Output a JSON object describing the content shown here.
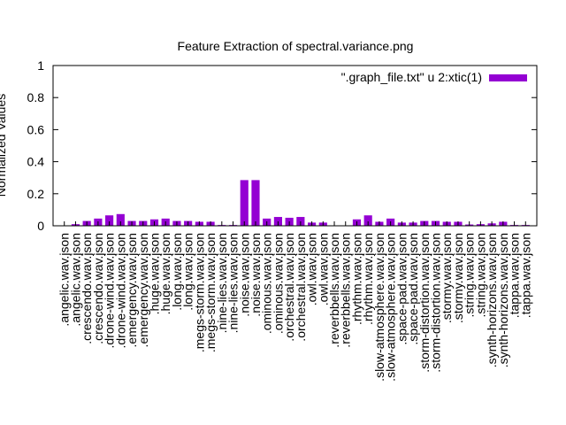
{
  "chart_data": {
    "type": "bar",
    "title": "Feature Extraction of spectral.variance.png",
    "xlabel": "",
    "ylabel": "Normalized Values",
    "ylim": [
      0,
      1
    ],
    "yticks": [
      "0",
      "0.2",
      "0.4",
      "0.6",
      "0.8",
      "1"
    ],
    "color": "#9400d3",
    "legend_position": "top-right",
    "categories": [
      ".angelic.wav.json",
      ".angelic.wav.json",
      ".crescendo.wav.json",
      ".crescendo.wav.json",
      ".drone-wind.wav.json",
      ".drone-wind.wav.json",
      ".emergency.wav.json",
      ".emergency.wav.json",
      ".huge.wav.json",
      ".huge.wav.json",
      ".long.wav.json",
      ".long.wav.json",
      ".megs-storm.wav.json",
      ".megs-storm.wav.json",
      ".nine-lies.wav.json",
      ".nine-lies.wav.json",
      ".noise.wav.json",
      ".noise.wav.json",
      ".ominous.wav.json",
      ".ominous.wav.json",
      ".orchestral.wav.json",
      ".orchestral.wav.json",
      ".owl.wav.json",
      ".owl.wav.json",
      ".reverbbells.wav.json",
      ".reverbbells.wav.json",
      ".rhythm.wav.json",
      ".rhythm.wav.json",
      ".slow-atmosphere.wav.json",
      ".slow-atmosphere.wav.json",
      ".space-pad.wav.json",
      ".space-pad.wav.json",
      ".storm-distortion.wav.json",
      ".storm-distortion.wav.json",
      ".stormy.wav.json",
      ".stormy.wav.json",
      ".string.wav.json",
      ".string.wav.json",
      ".synth-horizons.wav.json",
      ".synth-horizons.wav.json",
      ".tappa.wav.json",
      ".tappa.wav.json"
    ],
    "series": [
      {
        "name": "\".graph_file.txt\" u 2:xtic(1)",
        "values": [
          0.002,
          0.01,
          0.03,
          0.045,
          0.065,
          0.073,
          0.03,
          0.03,
          0.04,
          0.045,
          0.03,
          0.03,
          0.025,
          0.025,
          0.005,
          0.005,
          0.285,
          0.285,
          0.045,
          0.055,
          0.05,
          0.055,
          0.02,
          0.02,
          0.002,
          0.002,
          0.04,
          0.065,
          0.025,
          0.045,
          0.02,
          0.02,
          0.03,
          0.03,
          0.025,
          0.025,
          0.008,
          0.01,
          0.015,
          0.025,
          0.005,
          0.005
        ]
      }
    ]
  }
}
